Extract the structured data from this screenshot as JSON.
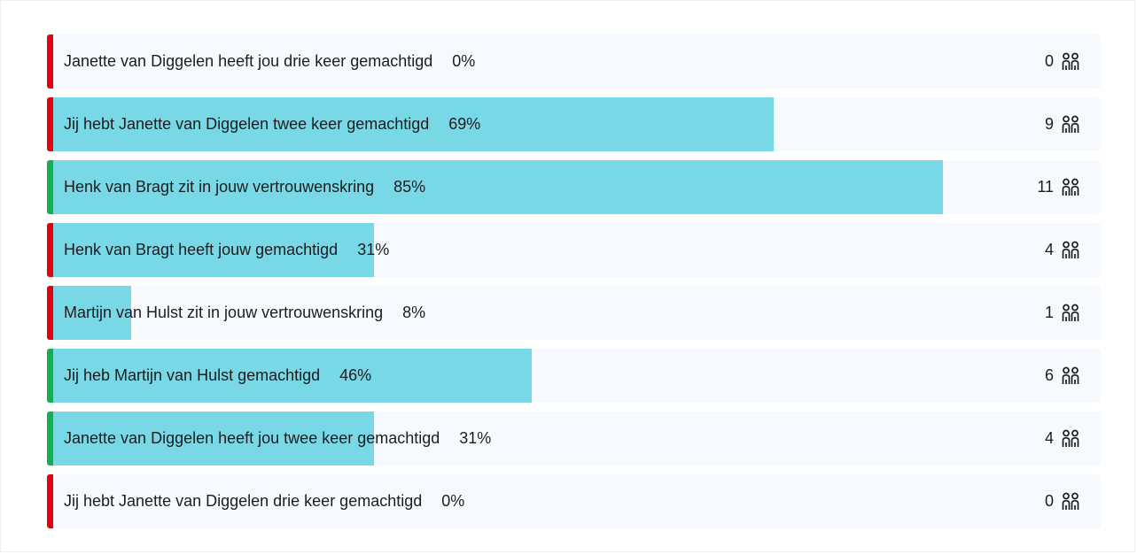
{
  "colors": {
    "fill": "#78d8e6",
    "row_background": "#f6f9fe",
    "marker_red": "#e3000f",
    "marker_green": "#12b04f"
  },
  "rows": [
    {
      "label": "Janette van Diggelen heeft jou drie keer gemachtigd",
      "percent_text": "0%",
      "share": 0.0,
      "count": "0",
      "marker": "red",
      "icon": "people-icon"
    },
    {
      "label": "Jij hebt Janette van Diggelen twee keer gemachtigd",
      "percent_text": "69%",
      "share": 0.69,
      "count": "9",
      "marker": "red",
      "icon": "people-icon"
    },
    {
      "label": "Henk van Bragt zit in jouw vertrouwenskring",
      "percent_text": "85%",
      "share": 0.85,
      "count": "11",
      "marker": "green",
      "icon": "people-icon"
    },
    {
      "label": "Henk van Bragt heeft jouw gemachtigd",
      "percent_text": "31%",
      "share": 0.31,
      "count": "4",
      "marker": "red",
      "icon": "people-icon"
    },
    {
      "label": "Martijn van Hulst zit in jouw vertrouwenskring",
      "percent_text": "8%",
      "share": 0.08,
      "count": "1",
      "marker": "red",
      "icon": "people-icon"
    },
    {
      "label": "Jij heb Martijn van Hulst gemachtigd",
      "percent_text": "46%",
      "share": 0.46,
      "count": "6",
      "marker": "green",
      "icon": "people-icon"
    },
    {
      "label": "Janette van Diggelen heeft jou twee keer gemachtigd",
      "percent_text": "31%",
      "share": 0.31,
      "count": "4",
      "marker": "green",
      "icon": "people-icon"
    },
    {
      "label": "Jij hebt Janette van Diggelen drie keer gemachtigd",
      "percent_text": "0%",
      "share": 0.0,
      "count": "0",
      "marker": "red",
      "icon": "people-icon"
    }
  ]
}
